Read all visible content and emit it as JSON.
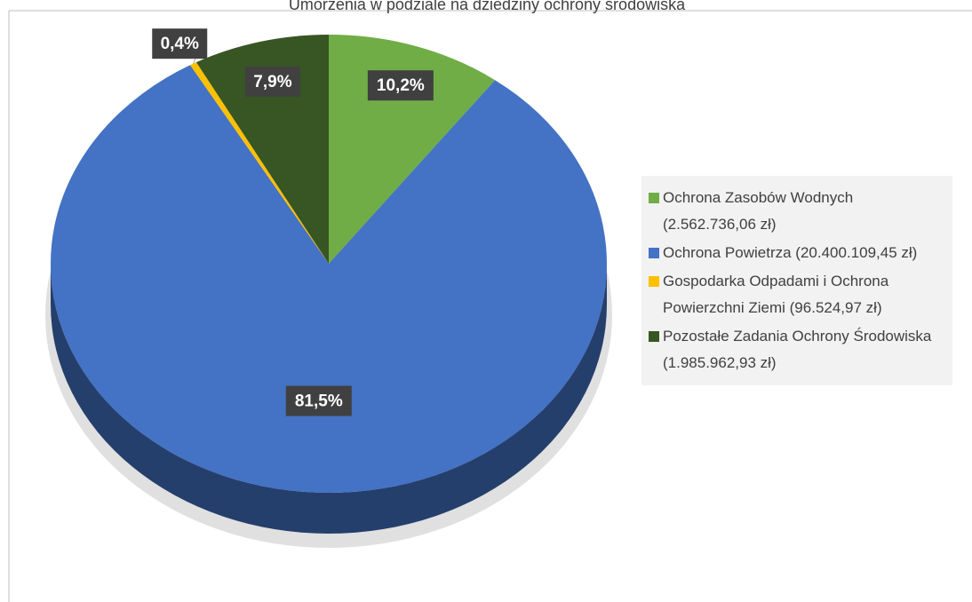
{
  "chart_data": {
    "type": "pie",
    "title": "Umorzenia w podziale na dziedziny ochrony środowiska",
    "categories": [
      "Ochrona Zasobów Wodnych (2.562.736,06 zł)",
      "Ochrona Powietrza (20.400.109,45 zł)",
      "Gospodarka Odpadami i Ochrona Powierzchni Ziemi (96.524,97 zł)",
      "Pozostałe Zadania Ochrony Środowiska (1.985.962,93 zł)"
    ],
    "values": [
      10.2,
      81.5,
      0.4,
      7.9
    ],
    "value_labels": [
      "10,2%",
      "81,5%",
      "0,4%",
      "7,9%"
    ],
    "colors": [
      "#70ad47",
      "#4472c4",
      "#ffc000",
      "#375623"
    ],
    "legend": "right"
  }
}
